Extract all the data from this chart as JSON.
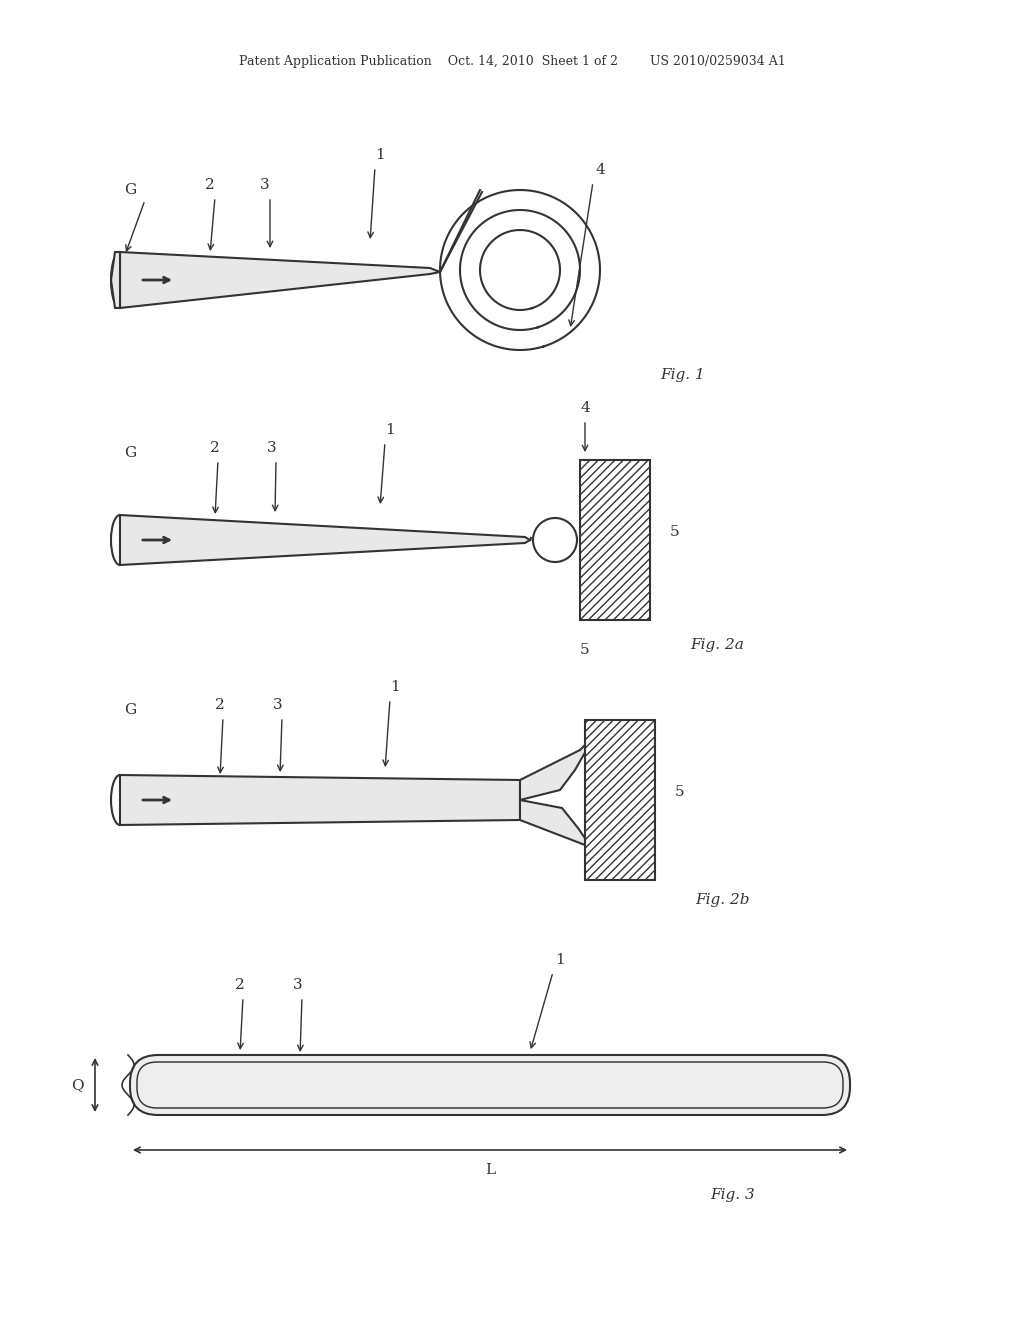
{
  "bg_color": "#ffffff",
  "line_color": "#333333",
  "header_text": "Patent Application Publication    Oct. 14, 2010  Sheet 1 of 2        US 2010/0259034 A1",
  "fig1_label": "Fig. 1",
  "fig2a_label": "Fig. 2a",
  "fig2b_label": "Fig. 2b",
  "fig3_label": "Fig. 3",
  "hatch_pattern": "////",
  "labels": {
    "G": "G",
    "1": "1",
    "2": "2",
    "3": "3",
    "4": "4",
    "5": "5",
    "L": "L",
    "Q": "Q"
  }
}
